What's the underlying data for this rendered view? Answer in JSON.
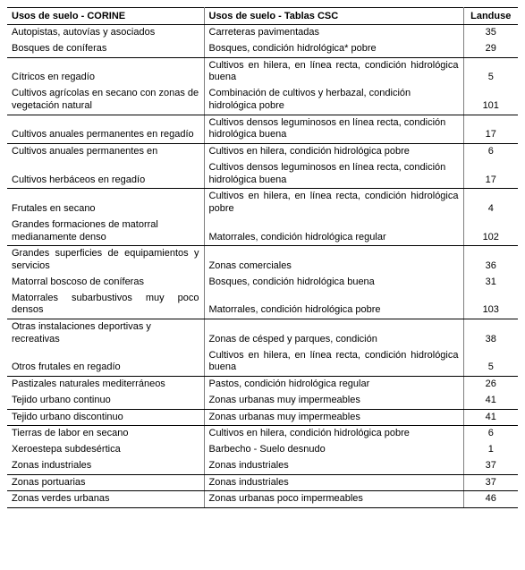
{
  "headers": {
    "col1": "Usos de suelo - CORINE",
    "col2": "Usos de suelo - Tablas CSC",
    "col3": "Landuse"
  },
  "rows": [
    {
      "corine": "Autopistas, autovías y asociados",
      "csc": "Carreteras pavimentadas",
      "landuse": "35",
      "sep": false
    },
    {
      "corine": "Bosques de coníferas",
      "csc": "Bosques, condición hidrológica* pobre",
      "landuse": "29",
      "sep": true
    },
    {
      "corine": "Cítricos en regadío",
      "csc": "Cultivos en hilera, en línea recta, condición hidrológica buena",
      "landuse": "5",
      "sep": false,
      "justify": true
    },
    {
      "corine": "Cultivos agrícolas en secano con zonas de vegetación natural",
      "csc": "Combinación de cultivos y herbazal, condición hidrológica pobre",
      "landuse": "101",
      "sep": true
    },
    {
      "corine": "Cultivos anuales permanentes en regadío",
      "csc": "Cultivos densos leguminosos en línea recta, condición hidrológica buena",
      "landuse": "17",
      "sep": true
    },
    {
      "corine": "Cultivos anuales permanentes en",
      "csc": "Cultivos en hilera, condición hidrológica pobre",
      "landuse": "6",
      "sep": false
    },
    {
      "corine": "Cultivos herbáceos en regadío",
      "csc": "Cultivos densos leguminosos en línea recta, condición hidrológica buena",
      "landuse": "17",
      "sep": true
    },
    {
      "corine": "Frutales en secano",
      "csc": "Cultivos en hilera, en línea recta, condición hidrológica pobre",
      "landuse": "4",
      "sep": false,
      "justify": true
    },
    {
      "corine": "Grandes formaciones de matorral medianamente denso",
      "csc": "Matorrales, condición hidrológica regular",
      "landuse": "102",
      "sep": true
    },
    {
      "corine": "Grandes superficies de equipamientos y servicios",
      "csc": "Zonas comerciales",
      "landuse": "36",
      "sep": false,
      "justify1": true
    },
    {
      "corine": "Matorral boscoso de coníferas",
      "csc": "Bosques, condición hidrológica buena",
      "landuse": "31",
      "sep": false
    },
    {
      "corine": "Matorrales subarbustivos muy poco densos",
      "csc": "Matorrales, condición hidrológica pobre",
      "landuse": "103",
      "sep": true,
      "justify1": true
    },
    {
      "corine": "Otras instalaciones deportivas y recreativas",
      "csc": "Zonas de césped y parques, condición",
      "landuse": "38",
      "sep": false
    },
    {
      "corine": "Otros frutales en regadío",
      "csc": "Cultivos en hilera, en línea recta, condición hidrológica buena",
      "landuse": "5",
      "sep": true,
      "justify": true
    },
    {
      "corine": "Pastizales naturales mediterráneos",
      "csc": "Pastos, condición hidrológica regular",
      "landuse": "26",
      "sep": false,
      "justify1": true
    },
    {
      "corine": "Tejido urbano continuo",
      "csc": "Zonas urbanas muy impermeables",
      "landuse": "41",
      "sep": true
    },
    {
      "corine": "Tejido urbano discontinuo",
      "csc": "Zonas urbanas muy impermeables",
      "landuse": "41",
      "sep": true
    },
    {
      "corine": "Tierras de labor en secano",
      "csc": "Cultivos en hilera, condición hidrológica pobre",
      "landuse": "6",
      "sep": false
    },
    {
      "corine": "Xeroestepa subdesértica",
      "csc": "Barbecho - Suelo desnudo",
      "landuse": "1",
      "sep": false
    },
    {
      "corine": "Zonas industriales",
      "csc": "Zonas industriales",
      "landuse": "37",
      "sep": true
    },
    {
      "corine": "Zonas portuarias",
      "csc": "Zonas industriales",
      "landuse": "37",
      "sep": true
    },
    {
      "corine": "Zonas verdes urbanas",
      "csc": "Zonas urbanas poco impermeables",
      "landuse": "46",
      "sep": true
    }
  ]
}
